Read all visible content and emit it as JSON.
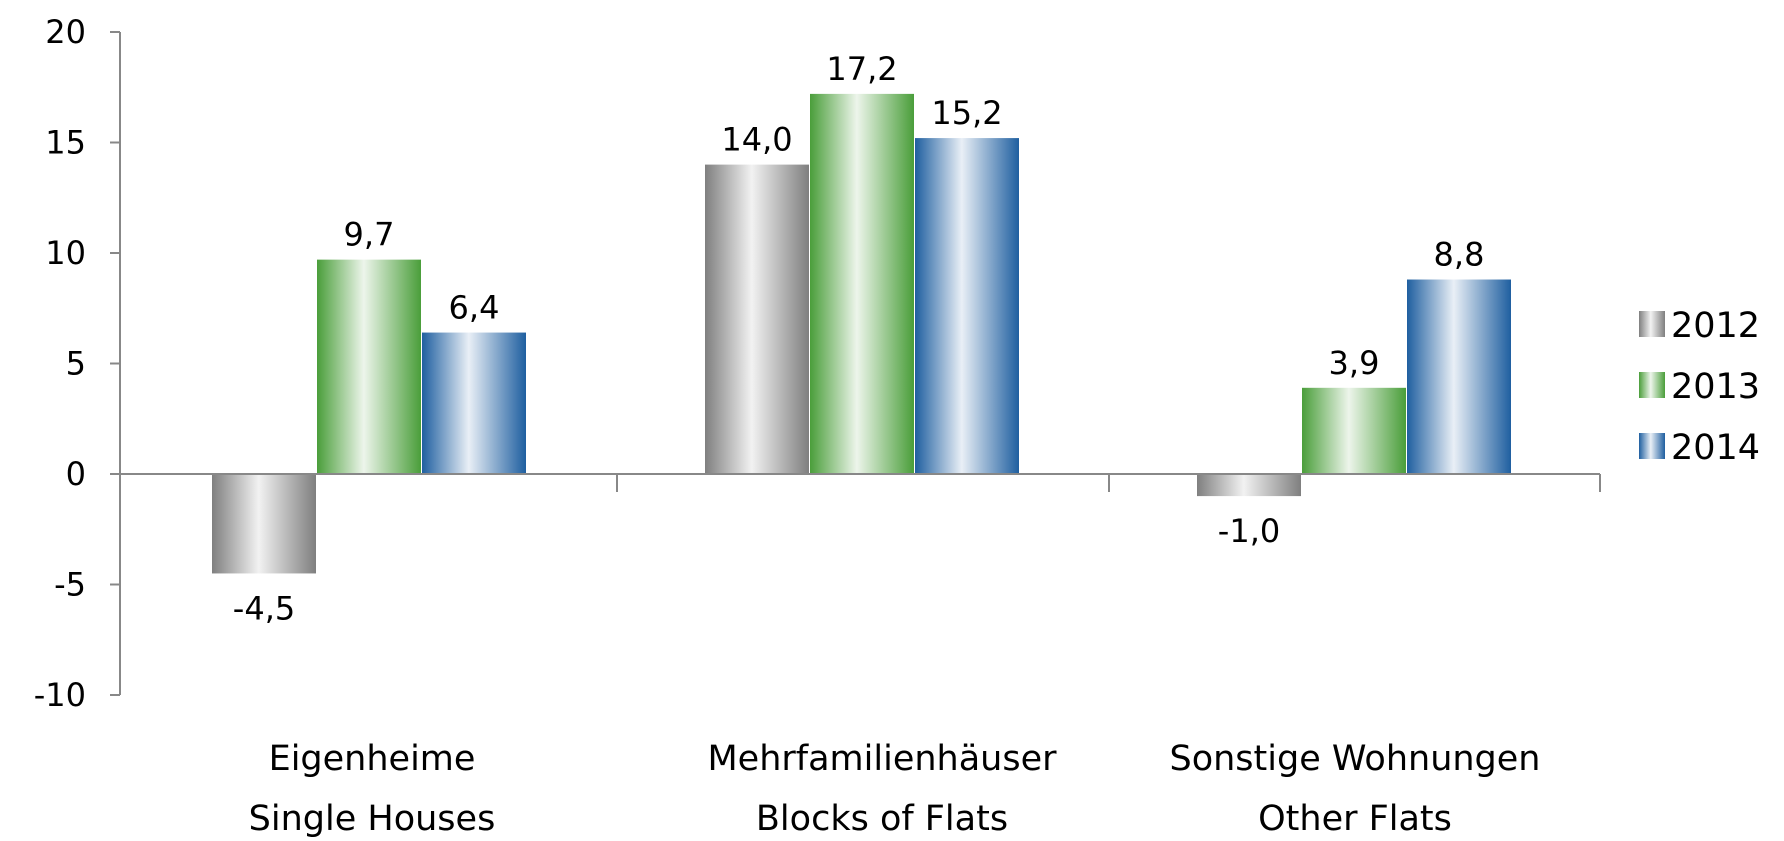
{
  "chart_data": {
    "type": "bar",
    "title": "",
    "xlabel": "",
    "ylabel": "",
    "ylim": [
      -10,
      20
    ],
    "yticks": [
      20,
      15,
      10,
      5,
      0,
      -5,
      -10
    ],
    "ytick_labels": [
      "20",
      "15",
      "10",
      "5",
      "0",
      "-5",
      "-10"
    ],
    "grid": false,
    "legend_position": "right",
    "categories": [
      {
        "line1": "Eigenheime",
        "line2": "Single Houses"
      },
      {
        "line1": "Mehrfamilienhäuser",
        "line2": "Blocks of Flats"
      },
      {
        "line1": "Sonstige Wohnungen",
        "line2": "Other Flats"
      }
    ],
    "series": [
      {
        "name": "2012",
        "color": "#7f7f7f",
        "values": [
          -4.5,
          14.0,
          -1.0
        ],
        "labels": [
          "-4,5",
          "14,0",
          "-1,0"
        ]
      },
      {
        "name": "2013",
        "color": "#4a9e3a",
        "values": [
          9.7,
          17.2,
          3.9
        ],
        "labels": [
          "9,7",
          "17,2",
          "3,9"
        ]
      },
      {
        "name": "2014",
        "color": "#1f5fa0",
        "values": [
          6.4,
          15.2,
          8.8
        ],
        "labels": [
          "6,4",
          "15,2",
          "8,8"
        ]
      }
    ]
  }
}
